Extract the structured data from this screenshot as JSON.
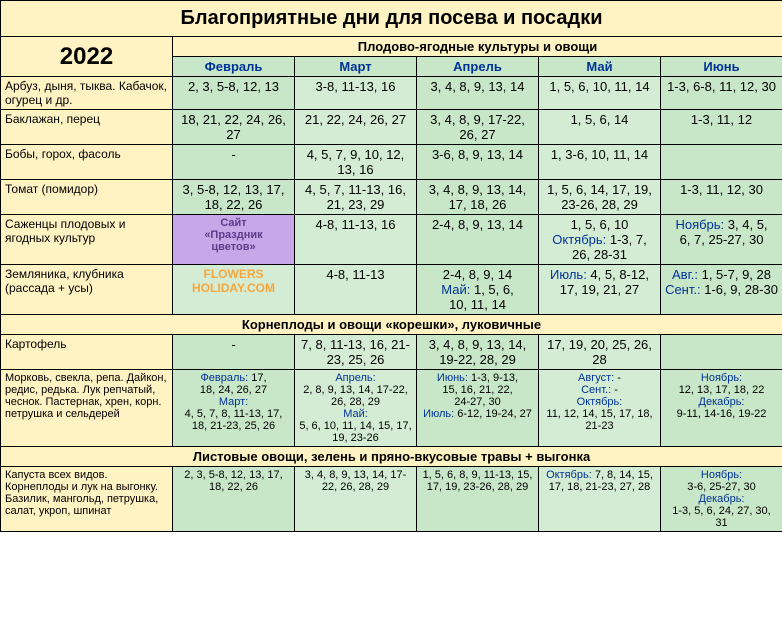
{
  "title": "Благоприятные дни для посева и посадки",
  "year": "2022",
  "section1": "Плодово-ягодные культуры и овощи",
  "section2": "Корнеплоды и овощи «корешки», луковичные",
  "section3": "Листовые овощи, зелень и пряно-вкусовые травы + выгонка",
  "months": {
    "feb": "Февраль",
    "mar": "Март",
    "apr": "Апрель",
    "may": "Май",
    "jun": "Июнь"
  },
  "rows": {
    "r1": {
      "label": "Арбуз, дыня, тыква. Кабачок, огурец и др.",
      "feb": "2, 3, 5-8, 12, 13",
      "mar": "3-8, 11-13, 16",
      "apr": "3, 4, 8, 9, 13, 14",
      "may": "1, 5, 6, 10, 11, 14",
      "jun": "1-3, 6-8, 11, 12, 30"
    },
    "r2": {
      "label": "Баклажан, перец",
      "feb": "18, 21, 22, 24, 26, 27",
      "mar": "21, 22, 24, 26, 27",
      "apr": "3, 4, 8, 9, 17-22, 26, 27",
      "may": "1, 5, 6, 14",
      "jun": "1-3, 11, 12"
    },
    "r3": {
      "label": "Бобы, горох, фасоль",
      "feb": "-",
      "mar": "4, 5, 7, 9, 10, 12, 13, 16",
      "apr": "3-6, 8, 9, 13, 14",
      "may": "1, 3-6, 10, 11, 14",
      "jun": ""
    },
    "r4": {
      "label": "Томат (помидор)",
      "feb": "3, 5-8, 12, 13, 17, 18, 22, 26",
      "mar": "4, 5, 7, 11-13, 16, 21, 23, 29",
      "apr": "3, 4, 8, 9, 13, 14, 17, 18, 26",
      "may": "1, 5, 6, 14, 17, 19, 23-26, 28, 29",
      "jun": "1-3, 11, 12, 30"
    },
    "r5": {
      "label": "Саженцы плодовых и ягодных культур",
      "feb_wm1": "Сайт",
      "feb_wm2": "«Праздник",
      "feb_wm3": "цветов»",
      "mar": "4-8, 11-13, 16",
      "apr": "2-4, 8, 9, 13, 14",
      "may_l1": "1, 5, 6, 10",
      "may_l2p": "Октябрь:",
      "may_l2": " 1-3, 7,",
      "may_l3": "26, 28-31",
      "jun_l1p": "Ноябрь:",
      "jun_l1": " 3, 4, 5,",
      "jun_l2": "6, 7, 25-27, 30"
    },
    "r6": {
      "label": "Земляника, клубника (рассада + усы)",
      "feb_wm1": "FLOWERS",
      "feb_wm2": "HOLIDAY.COM",
      "mar": "4-8, 11-13",
      "apr_l1": "2-4, 8, 9, 14",
      "apr_l2p": "Май:",
      "apr_l2": " 1, 5, 6,",
      "apr_l3": "10, 11, 14",
      "may_l1p": "Июль:",
      "may_l1": " 4, 5, 8-12,",
      "may_l2": "17, 19, 21, 27",
      "jun_l1p": "Авг.:",
      "jun_l1": " 1, 5-7, 9, 28",
      "jun_l2p": "Сент.:",
      "jun_l2": " 1-6, 9, 28-30"
    },
    "r7": {
      "label": "Картофель",
      "feb": "-",
      "mar": "7, 8, 11-13, 16, 21-23, 25, 26",
      "apr": "3, 4, 8, 9, 13, 14, 19-22, 28, 29",
      "may": "17, 19, 20, 25, 26, 28",
      "jun": ""
    },
    "r8": {
      "label": "Морковь, свекла, репа. Дайкон, редис, редька. Лук репчатый, чеснок. Пастернак, хрен, корн. петрушка и сельдерей",
      "feb_l1p": "Февраль:",
      "feb_l1": " 17,",
      "feb_l2": "18, 24, 26, 27",
      "feb_l3p": "Март:",
      "feb_l4": "4, 5, 7, 8, 11-13, 17, 18, 21-23, 25, 26",
      "mar_l1p": "Апрель:",
      "mar_l2": "2, 8, 9, 13, 14, 17-22, 26, 28, 29",
      "mar_l3p": "Май:",
      "mar_l4": "5, 6, 10, 11, 14, 15, 17, 19, 23-26",
      "apr_l1p": "Июнь:",
      "apr_l1": " 1-3, 9-13,",
      "apr_l2": "15, 16, 21, 22,",
      "apr_l3": "24-27, 30",
      "apr_l4p": "Июль:",
      "apr_l4": " 6-12, 19-24, 27",
      "may_l1p": "Август:",
      "may_l1": " -",
      "may_l2p": "Сент.:",
      "may_l2": " -",
      "may_l3p": "Октябрь:",
      "may_l4": "11, 12, 14, 15, 17, 18, 21-23",
      "jun_l1p": "Ноябрь:",
      "jun_l2": "12, 13, 17, 18, 22",
      "jun_l3p": "Декабрь:",
      "jun_l4": "9-11, 14-16, 19-22"
    },
    "r9": {
      "label": "Капуста всех видов. Корнеплоды и лук на выгонку. Базилик, мангольд, петрушка, салат, укроп, шпинат",
      "feb": "2, 3, 5-8, 12, 13, 17, 18, 22, 26",
      "mar": "3, 4, 8, 9, 13, 14, 17-22, 26, 28, 29",
      "apr_l1": "1, 5, 6, 8, 9, 11-13, 15, 17, 19, 23-26, 28, 29",
      "may_l1p": "Октябрь:",
      "may_l1": " 7, 8, 14, 15, 17, 18, 21-23, 27, 28",
      "jun_l1p": "Ноябрь:",
      "jun_l2": "3-6, 25-27, 30",
      "jun_l3p": "Декабрь:",
      "jun_l4": "1-3, 5, 6, 24, 27, 30, 31"
    }
  }
}
